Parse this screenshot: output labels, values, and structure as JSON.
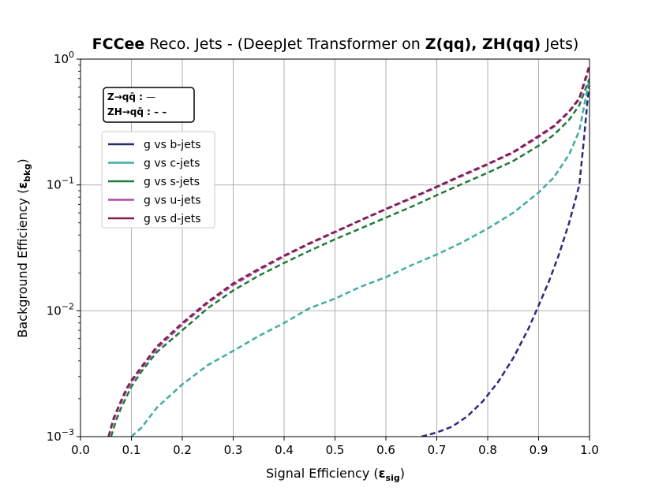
{
  "chart_data": {
    "type": "line",
    "title_bold": "FCCee",
    "title_normal": "Reco. Jets - (DeepJet Transformer on",
    "title_bold2": "Z(qq), ZH(qq)",
    "title_end": "Jets)",
    "xlabel": "Signal Efficiency",
    "xlabel_symbol": "ε",
    "xlabel_sub": "sig",
    "ylabel": "Background Efficiency",
    "ylabel_symbol": "ε",
    "ylabel_sub": "bkg",
    "xlim": [
      0.0,
      1.0
    ],
    "ylim": [
      0.001,
      1.0
    ],
    "yscale": "log",
    "grid": true,
    "x_ticks": [
      "0.0",
      "0.1",
      "0.2",
      "0.3",
      "0.4",
      "0.5",
      "0.6",
      "0.7",
      "0.8",
      "0.9",
      "1.0"
    ],
    "y_ticks": [
      {
        "base": "10",
        "exp": "0"
      },
      {
        "base": "10",
        "exp": "−1"
      },
      {
        "base": "10",
        "exp": "−2"
      },
      {
        "base": "10",
        "exp": "−3"
      }
    ],
    "process_legend": [
      {
        "label": "Z→qq̄ :",
        "style": "—"
      },
      {
        "label": "ZH→qq̄ :",
        "style": "– –"
      }
    ],
    "legend_location": "upper-left",
    "series": [
      {
        "name": "g vs b-jets",
        "color": "#2e2a7a",
        "x": [
          0.67,
          0.7,
          0.73,
          0.76,
          0.79,
          0.82,
          0.85,
          0.88,
          0.9,
          0.92,
          0.94,
          0.96,
          0.98,
          0.99,
          1.0
        ],
        "y": [
          0.001,
          0.00108,
          0.0012,
          0.00145,
          0.0019,
          0.0027,
          0.0042,
          0.0072,
          0.011,
          0.017,
          0.028,
          0.05,
          0.1,
          0.25,
          0.7
        ]
      },
      {
        "name": "g vs c-jets",
        "color": "#3fada0",
        "x": [
          0.1,
          0.12,
          0.15,
          0.2,
          0.25,
          0.3,
          0.35,
          0.4,
          0.45,
          0.5,
          0.55,
          0.6,
          0.65,
          0.7,
          0.75,
          0.8,
          0.85,
          0.9,
          0.93,
          0.96,
          0.98,
          1.0
        ],
        "y": [
          0.001,
          0.00118,
          0.0017,
          0.0026,
          0.0037,
          0.0048,
          0.0063,
          0.008,
          0.0105,
          0.0125,
          0.0155,
          0.0185,
          0.023,
          0.028,
          0.035,
          0.045,
          0.06,
          0.087,
          0.115,
          0.175,
          0.27,
          0.7
        ]
      },
      {
        "name": "g vs s-jets",
        "color": "#1e7a38",
        "x": [
          0.06,
          0.07,
          0.08,
          0.1,
          0.12,
          0.15,
          0.2,
          0.25,
          0.3,
          0.35,
          0.4,
          0.45,
          0.5,
          0.55,
          0.6,
          0.65,
          0.7,
          0.75,
          0.8,
          0.85,
          0.9,
          0.93,
          0.96,
          0.98,
          1.0
        ],
        "y": [
          0.001,
          0.00135,
          0.0017,
          0.0025,
          0.0033,
          0.0047,
          0.007,
          0.0105,
          0.0145,
          0.019,
          0.024,
          0.03,
          0.037,
          0.045,
          0.055,
          0.067,
          0.083,
          0.102,
          0.125,
          0.155,
          0.205,
          0.25,
          0.33,
          0.43,
          0.7
        ]
      },
      {
        "name": "g vs u-jets",
        "color": "#b04aa6",
        "x": [
          0.055,
          0.065,
          0.075,
          0.09,
          0.1,
          0.12,
          0.15,
          0.2,
          0.25,
          0.3,
          0.35,
          0.4,
          0.45,
          0.5,
          0.55,
          0.6,
          0.65,
          0.7,
          0.75,
          0.8,
          0.85,
          0.9,
          0.93,
          0.96,
          0.98,
          1.0
        ],
        "y": [
          0.001,
          0.00135,
          0.0017,
          0.0023,
          0.0027,
          0.0035,
          0.005,
          0.0078,
          0.0115,
          0.016,
          0.021,
          0.027,
          0.034,
          0.042,
          0.052,
          0.064,
          0.078,
          0.096,
          0.118,
          0.145,
          0.18,
          0.24,
          0.29,
          0.38,
          0.48,
          0.85
        ]
      },
      {
        "name": "g vs d-jets",
        "color": "#7c1f4f",
        "x": [
          0.055,
          0.065,
          0.075,
          0.09,
          0.1,
          0.12,
          0.15,
          0.2,
          0.25,
          0.3,
          0.35,
          0.4,
          0.45,
          0.5,
          0.55,
          0.6,
          0.65,
          0.7,
          0.75,
          0.8,
          0.85,
          0.9,
          0.93,
          0.96,
          0.98,
          1.0
        ],
        "y": [
          0.001,
          0.0014,
          0.00175,
          0.0024,
          0.0028,
          0.0036,
          0.0052,
          0.008,
          0.0118,
          0.0165,
          0.0215,
          0.0275,
          0.0345,
          0.0425,
          0.0525,
          0.0645,
          0.079,
          0.097,
          0.12,
          0.147,
          0.183,
          0.245,
          0.295,
          0.385,
          0.49,
          0.9
        ]
      }
    ]
  }
}
